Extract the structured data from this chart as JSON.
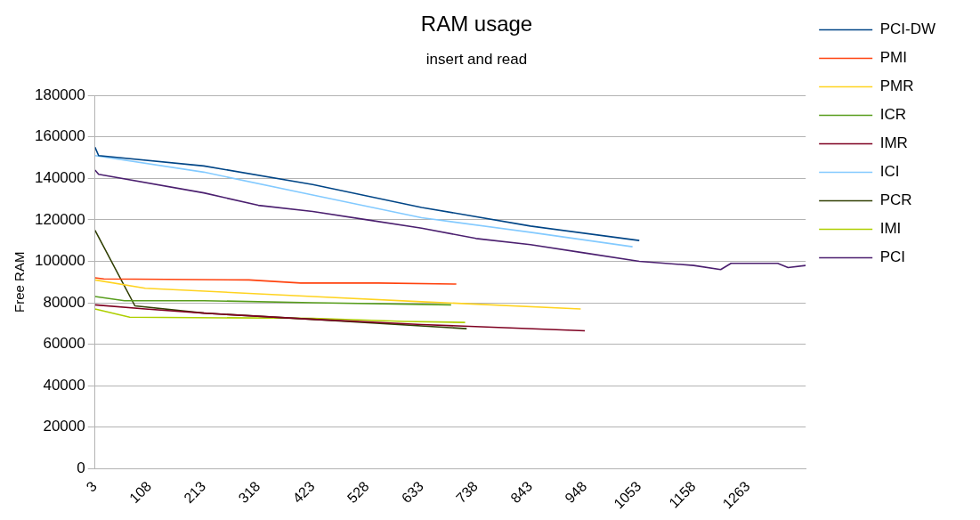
{
  "chart_data": {
    "type": "line",
    "title": "RAM usage",
    "subtitle": "insert and read",
    "ylabel": "Free RAM",
    "xlim": [
      3,
      1374
    ],
    "xticks": [
      3,
      108,
      213,
      318,
      423,
      528,
      633,
      738,
      843,
      948,
      1053,
      1158,
      1263
    ],
    "ylim": [
      0,
      180000
    ],
    "yticks": [
      0,
      20000,
      40000,
      60000,
      80000,
      100000,
      120000,
      140000,
      160000,
      180000
    ],
    "grid": "y",
    "legend": "right",
    "marker": "none",
    "line_style": "solid",
    "series": [
      {
        "name": "PCI-DW",
        "color": "#004586",
        "x": [
          3,
          10,
          213,
          423,
          633,
          843,
          1053
        ],
        "values": [
          155000,
          151000,
          146000,
          137000,
          126000,
          117000,
          110000
        ]
      },
      {
        "name": "PMI",
        "color": "#ff420e",
        "x": [
          3,
          20,
          300,
          400,
          550,
          700
        ],
        "values": [
          92000,
          91500,
          91000,
          89500,
          89500,
          89000
        ]
      },
      {
        "name": "PMR",
        "color": "#ffd320",
        "x": [
          3,
          100,
          423,
          633,
          940
        ],
        "values": [
          91000,
          87000,
          83000,
          80500,
          77000
        ]
      },
      {
        "name": "ICR",
        "color": "#579d1c",
        "x": [
          3,
          60,
          213,
          423,
          690
        ],
        "values": [
          83000,
          81000,
          81000,
          80000,
          79000
        ]
      },
      {
        "name": "IMR",
        "color": "#7e0021",
        "x": [
          3,
          100,
          213,
          423,
          633,
          948
        ],
        "values": [
          79000,
          77000,
          75000,
          72000,
          69500,
          66500
        ]
      },
      {
        "name": "ICI",
        "color": "#83caff",
        "x": [
          3,
          213,
          423,
          633,
          843,
          1040
        ],
        "values": [
          151000,
          143000,
          132000,
          121000,
          114000,
          107000
        ]
      },
      {
        "name": "PCR",
        "color": "#314004",
        "x": [
          3,
          80,
          213,
          423,
          720
        ],
        "values": [
          115000,
          78500,
          75000,
          72000,
          67500
        ]
      },
      {
        "name": "IMI",
        "color": "#aecf00",
        "x": [
          3,
          70,
          423,
          600,
          717
        ],
        "values": [
          77000,
          73000,
          72500,
          71000,
          70500
        ]
      },
      {
        "name": "PCI",
        "color": "#4b1f6f",
        "x": [
          3,
          10,
          213,
          318,
          423,
          528,
          633,
          738,
          843,
          948,
          1053,
          1158,
          1210,
          1230,
          1320,
          1340,
          1374
        ],
        "values": [
          144000,
          142000,
          133000,
          127000,
          124000,
          120000,
          116000,
          111000,
          108000,
          104000,
          100000,
          98000,
          96000,
          99000,
          99000,
          97000,
          98000
        ]
      }
    ]
  }
}
